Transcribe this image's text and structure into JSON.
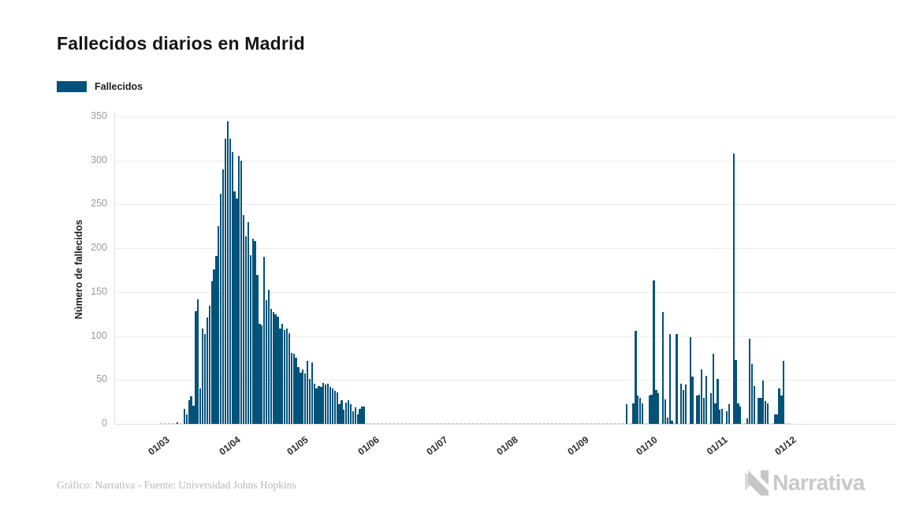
{
  "title": "Fallecidos diarios en Madrid",
  "legend": {
    "label": "Fallecidos"
  },
  "y_axis": {
    "label": "Número de fallecidos",
    "ticks": [
      0,
      50,
      100,
      150,
      200,
      250,
      300,
      350
    ]
  },
  "x_axis": {
    "tick_labels": [
      "01/03",
      "01/04",
      "01/05",
      "01/06",
      "01/07",
      "01/08",
      "01/09",
      "01/10",
      "01/11",
      "01/12"
    ]
  },
  "footer": {
    "credit": "Gráfico: Narrativa - Fuente: Universidad Johns Hopkins",
    "brand": "Narrativa"
  },
  "colors": {
    "bar": "#02527a",
    "grid": "#ececec",
    "axis": "#dddddd",
    "zero_line": "#b9cdd9",
    "tick_label": "#9b9b9b",
    "text": "#151515",
    "credit": "#b8b8b8",
    "brand": "#c9c9c9"
  },
  "chart_data": {
    "type": "bar",
    "title": "Fallecidos diarios en Madrid",
    "xlabel": "",
    "ylabel": "Número de fallecidos",
    "ylim": [
      0,
      350
    ],
    "grid": true,
    "legend_position": "top-left",
    "frequency": "daily",
    "x_tick_labels": [
      "01/03",
      "01/04",
      "01/05",
      "01/06",
      "01/07",
      "01/08",
      "01/09",
      "01/10",
      "01/11",
      "01/12"
    ],
    "x_tick_positions_days": [
      0,
      31,
      61,
      92,
      122,
      153,
      184,
      214,
      245,
      275
    ],
    "series": [
      {
        "name": "Fallecidos",
        "start_label": "01/03",
        "values": [
          0,
          0,
          0,
          0,
          0,
          0,
          0,
          2,
          0,
          0,
          17,
          11,
          27,
          31,
          21,
          128,
          142,
          40,
          109,
          102,
          121,
          135,
          162,
          176,
          191,
          225,
          262,
          290,
          325,
          345,
          325,
          310,
          265,
          257,
          305,
          300,
          238,
          214,
          230,
          192,
          211,
          208,
          170,
          114,
          112,
          190,
          141,
          153,
          131,
          127,
          125,
          122,
          109,
          114,
          107,
          109,
          103,
          81,
          80,
          75,
          65,
          58,
          62,
          57,
          72,
          51,
          70,
          46,
          40,
          43,
          42,
          47,
          45,
          46,
          42,
          40,
          38,
          36,
          22,
          27,
          16,
          24,
          27,
          22,
          14,
          19,
          11,
          17,
          20,
          20,
          0,
          0,
          0,
          0,
          0,
          0,
          0,
          0,
          0,
          0,
          0,
          0,
          0,
          0,
          0,
          0,
          0,
          0,
          0,
          0,
          0,
          0,
          0,
          0,
          0,
          0,
          0,
          0,
          0,
          0,
          0,
          0,
          0,
          0,
          0,
          0,
          0,
          0,
          0,
          0,
          0,
          0,
          0,
          0,
          0,
          0,
          0,
          0,
          0,
          0,
          0,
          0,
          0,
          0,
          0,
          0,
          0,
          0,
          0,
          0,
          0,
          0,
          0,
          0,
          0,
          0,
          0,
          0,
          0,
          0,
          0,
          0,
          0,
          0,
          0,
          0,
          0,
          0,
          0,
          0,
          0,
          0,
          0,
          0,
          0,
          0,
          0,
          0,
          0,
          0,
          0,
          0,
          0,
          0,
          0,
          0,
          0,
          0,
          0,
          0,
          0,
          0,
          0,
          0,
          0,
          0,
          0,
          0,
          0,
          0,
          0,
          0,
          0,
          0,
          22,
          0,
          0,
          23,
          106,
          32,
          30,
          23,
          0,
          0,
          32,
          33,
          163,
          39,
          35,
          0,
          127,
          28,
          7,
          102,
          4,
          0,
          102,
          0,
          46,
          39,
          45,
          0,
          99,
          54,
          0,
          32,
          33,
          62,
          30,
          55,
          0,
          35,
          80,
          23,
          51,
          16,
          17,
          0,
          14,
          22,
          0,
          308,
          73,
          23,
          20,
          0,
          0,
          6,
          97,
          68,
          43,
          0,
          30,
          30,
          49,
          26,
          23,
          0,
          0,
          11,
          11,
          40,
          32,
          72,
          0
        ]
      }
    ]
  }
}
